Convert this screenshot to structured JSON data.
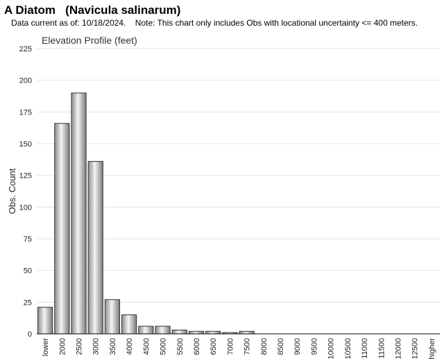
{
  "header": {
    "title": "A Diatom   (Navicula salinarum)",
    "subtitle": "Data current as of: 10/18/2024.    Note: This chart only includes Obs with locational uncertainty <= 400 meters."
  },
  "chart_data": {
    "type": "bar",
    "title": "Elevation Profile (feet)",
    "xlabel": "",
    "ylabel": "Obs. Count",
    "ylim": [
      0,
      225
    ],
    "yticks": [
      0,
      25,
      50,
      75,
      100,
      125,
      150,
      175,
      200,
      225
    ],
    "grid": true,
    "categories": [
      "lower",
      "2000",
      "2500",
      "3000",
      "3500",
      "4000",
      "4500",
      "5000",
      "5500",
      "6000",
      "6500",
      "7000",
      "7500",
      "8000",
      "8500",
      "9000",
      "9500",
      "10000",
      "10500",
      "11000",
      "11500",
      "12000",
      "12500",
      "higher"
    ],
    "values": [
      21,
      166,
      190,
      136,
      27,
      15,
      6,
      6,
      3,
      2,
      2,
      1,
      2,
      0,
      0,
      0,
      0,
      0,
      0,
      0,
      0,
      0,
      0,
      0
    ]
  }
}
